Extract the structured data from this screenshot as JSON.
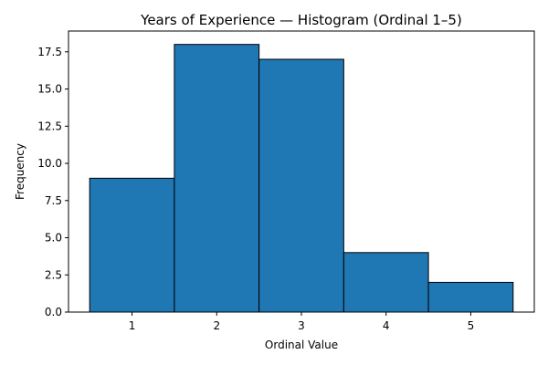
{
  "chart_data": {
    "type": "bar",
    "title": "Years of Experience — Histogram (Ordinal 1–5)",
    "xlabel": "Ordinal Value",
    "ylabel": "Frequency",
    "categories": [
      "1",
      "2",
      "3",
      "4",
      "5"
    ],
    "values": [
      9,
      18,
      17,
      4,
      2
    ],
    "xlim": [
      0.25,
      5.75
    ],
    "ylim": [
      0,
      18.9
    ],
    "yticks": [
      0.0,
      2.5,
      5.0,
      7.5,
      10.0,
      12.5,
      15.0,
      17.5
    ],
    "ytick_labels": [
      "0.0",
      "2.5",
      "5.0",
      "7.5",
      "10.0",
      "12.5",
      "15.0",
      "17.5"
    ],
    "grid": false,
    "legend": "none",
    "colors": {
      "bar_fill": "#1f77b4",
      "bar_edge": "#000000",
      "axis": "#000000"
    }
  }
}
